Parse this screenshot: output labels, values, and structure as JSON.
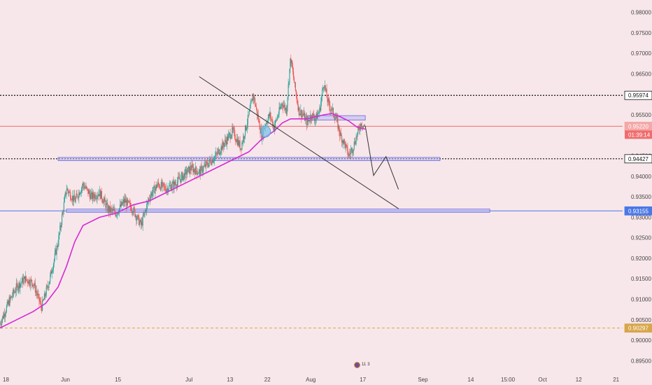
{
  "chart_data": {
    "type": "candlestick",
    "price_scale": {
      "ticks": [
        "0.98000",
        "0.97500",
        "0.97000",
        "0.96500",
        "0.96000",
        "0.95500",
        "0.95000",
        "0.94500",
        "0.94000",
        "0.93500",
        "0.93000",
        "0.92500",
        "0.92000",
        "0.91500",
        "0.91000",
        "0.90500",
        "0.90000",
        "0.89500"
      ],
      "ylim": [
        0.8925,
        0.983
      ]
    },
    "time_scale": {
      "ticks": [
        {
          "label": "18",
          "x": 0
        },
        {
          "label": "Jun",
          "x": 14
        },
        {
          "label": "15",
          "x": 27
        },
        {
          "label": "Jul",
          "x": 44
        },
        {
          "label": "13",
          "x": 54
        },
        {
          "label": "22",
          "x": 63
        },
        {
          "label": "Aug",
          "x": 73
        },
        {
          "label": "17",
          "x": 86
        },
        {
          "label": "Sep",
          "x": 100
        },
        {
          "label": "14",
          "x": 112
        },
        {
          "label": "15:00",
          "x": 120
        },
        {
          "label": "Oct",
          "x": 129
        },
        {
          "label": "12",
          "x": 138
        },
        {
          "label": "21",
          "x": 147
        }
      ]
    },
    "price_path": [
      [
        0,
        0.904
      ],
      [
        2,
        0.909
      ],
      [
        4,
        0.913
      ],
      [
        6,
        0.915
      ],
      [
        8,
        0.914
      ],
      [
        10,
        0.908
      ],
      [
        12,
        0.915
      ],
      [
        14,
        0.924
      ],
      [
        16,
        0.937
      ],
      [
        18,
        0.934
      ],
      [
        20,
        0.938
      ],
      [
        22,
        0.935
      ],
      [
        24,
        0.936
      ],
      [
        26,
        0.932
      ],
      [
        28,
        0.931
      ],
      [
        30,
        0.934
      ],
      [
        32,
        0.932
      ],
      [
        34,
        0.928
      ],
      [
        36,
        0.935
      ],
      [
        38,
        0.938
      ],
      [
        40,
        0.937
      ],
      [
        42,
        0.938
      ],
      [
        44,
        0.94
      ],
      [
        46,
        0.942
      ],
      [
        48,
        0.941
      ],
      [
        50,
        0.943
      ],
      [
        52,
        0.945
      ],
      [
        54,
        0.948
      ],
      [
        56,
        0.951
      ],
      [
        58,
        0.947
      ],
      [
        60,
        0.955
      ],
      [
        61,
        0.96
      ],
      [
        62,
        0.955
      ],
      [
        63,
        0.95
      ],
      [
        64,
        0.953
      ],
      [
        65,
        0.955
      ],
      [
        66,
        0.952
      ],
      [
        67,
        0.955
      ],
      [
        68,
        0.958
      ],
      [
        69,
        0.956
      ],
      [
        70,
        0.969
      ],
      [
        71,
        0.962
      ],
      [
        72,
        0.956
      ],
      [
        73,
        0.955
      ],
      [
        74,
        0.953
      ],
      [
        75,
        0.955
      ],
      [
        76,
        0.954
      ],
      [
        77,
        0.956
      ],
      [
        78,
        0.963
      ],
      [
        79,
        0.958
      ],
      [
        80,
        0.956
      ],
      [
        81,
        0.954
      ],
      [
        82,
        0.95
      ],
      [
        83,
        0.948
      ],
      [
        84,
        0.945
      ],
      [
        85,
        0.947
      ],
      [
        86,
        0.95
      ],
      [
        87,
        0.953
      ],
      [
        88,
        0.952
      ]
    ],
    "candle_count": 560,
    "moving_average": {
      "color": "#d62ad6",
      "points": [
        [
          0,
          0.903
        ],
        [
          4,
          0.905
        ],
        [
          8,
          0.907
        ],
        [
          11,
          0.909
        ],
        [
          14,
          0.913
        ],
        [
          16,
          0.918
        ],
        [
          18,
          0.924
        ],
        [
          20,
          0.928
        ],
        [
          24,
          0.93
        ],
        [
          28,
          0.931
        ],
        [
          32,
          0.933
        ],
        [
          36,
          0.934
        ],
        [
          40,
          0.936
        ],
        [
          44,
          0.938
        ],
        [
          48,
          0.94
        ],
        [
          52,
          0.942
        ],
        [
          56,
          0.944
        ],
        [
          60,
          0.946
        ],
        [
          63,
          0.949
        ],
        [
          66,
          0.951
        ],
        [
          68,
          0.953
        ],
        [
          70,
          0.954
        ],
        [
          74,
          0.954
        ],
        [
          78,
          0.955
        ],
        [
          80,
          0.9553
        ],
        [
          82,
          0.9545
        ],
        [
          84,
          0.9535
        ],
        [
          86,
          0.952
        ],
        [
          88,
          0.9515
        ]
      ]
    },
    "horizontal_levels": [
      {
        "value": 0.95974,
        "label": "0.95974",
        "style": "dotted",
        "color": "#111111",
        "tag_bg": "#ffffff",
        "tag_fg": "#111111",
        "tag_border": "#111111"
      },
      {
        "value": 0.9522,
        "label": "0.95220",
        "style": "solid",
        "color": "#f06c6c",
        "tag_bg": "#f4a8a8",
        "tag_fg": "#ffffff",
        "tag_border": "#f4a8a8"
      },
      {
        "value": 0.94427,
        "label": "0.94427",
        "style": "dotted",
        "color": "#111111",
        "tag_bg": "#ffffff",
        "tag_fg": "#111111",
        "tag_border": "#111111"
      },
      {
        "value": 0.93155,
        "label": "0.93155",
        "style": "solid",
        "color": "#4a78e6",
        "tag_bg": "#4a78e6",
        "tag_fg": "#ffffff",
        "tag_border": "#4a78e6"
      },
      {
        "value": 0.90297,
        "label": "0.90297",
        "style": "dashed",
        "color": "#d8a64a",
        "tag_bg": "#d8a64a",
        "tag_fg": "#ffffff",
        "tag_border": "#d8a64a"
      }
    ],
    "countdown": {
      "label": "01:39:14",
      "bg": "#f06c6c",
      "fg": "#ffffff"
    },
    "zones": [
      {
        "x0": 14,
        "x1": 106,
        "y0": 0.9438,
        "y1": 0.9446
      },
      {
        "x0": 16,
        "x1": 118,
        "y0": 0.9312,
        "y1": 0.932
      },
      {
        "x0": 74,
        "x1": 88,
        "y0": 0.9537,
        "y1": 0.9548
      }
    ],
    "trendline": {
      "points": [
        [
          48,
          0.9643
        ],
        [
          96,
          0.9321
        ]
      ]
    },
    "projection": {
      "points": [
        [
          88,
          0.9523
        ],
        [
          90,
          0.9402
        ],
        [
          93,
          0.9448
        ],
        [
          96,
          0.9368
        ]
      ]
    },
    "marker": {
      "x": 64,
      "y": 0.9509,
      "color": "#7ec3ea"
    },
    "colors": {
      "up": "#26a69a",
      "down": "#ef5350",
      "background": "#f8e7ea",
      "zone_fill": "#b8b6f2",
      "zone_stroke": "#6a6ae0"
    }
  },
  "badge": {
    "count_a": "11",
    "count_b": "3"
  }
}
